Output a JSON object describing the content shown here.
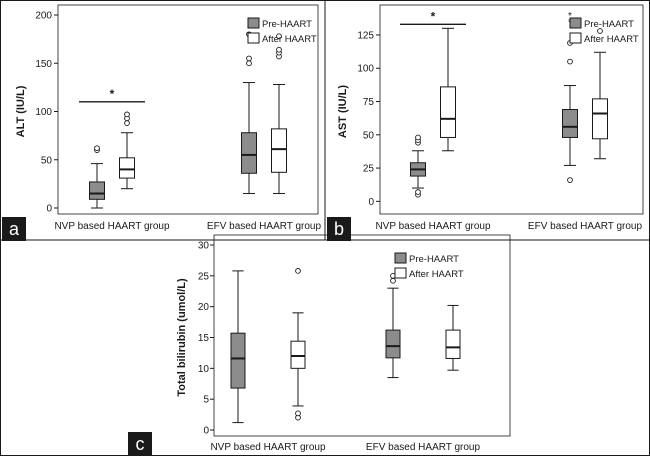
{
  "panel_labels": {
    "a": "a",
    "b": "b",
    "c": "c"
  },
  "colors": {
    "pre": "#8c8c8c",
    "post": "#ffffff",
    "stroke": "#1a1a1a"
  },
  "chart_data": [
    {
      "type": "boxplot",
      "panel": "a",
      "ylabel": "ALT  (IU/L)",
      "xlabel": "",
      "ylim": [
        0,
        200
      ],
      "yticks": [
        0,
        50,
        100,
        150,
        200
      ],
      "categories": [
        "NVP based HAART group",
        "EFV based HAART group"
      ],
      "legend": {
        "position": "top-right"
      },
      "series": [
        {
          "name": "Pre-HAART",
          "fill": "#8c8c8c",
          "boxes": [
            {
              "min": 0,
              "q1": 9,
              "median": 15,
              "q3": 27,
              "max": 46,
              "outliers": [
                60,
                62
              ],
              "extremes": []
            },
            {
              "min": 15,
              "q1": 36,
              "median": 55,
              "q3": 78,
              "max": 130,
              "outliers": [
                150,
                155,
                180
              ],
              "extremes": []
            }
          ]
        },
        {
          "name": "After HAART",
          "fill": "#ffffff",
          "boxes": [
            {
              "min": 20,
              "q1": 31,
              "median": 40,
              "q3": 52,
              "max": 78,
              "outliers": [
                88,
                93,
                97
              ],
              "extremes": []
            },
            {
              "min": 15,
              "q1": 37,
              "median": 61,
              "q3": 82,
              "max": 128,
              "outliers": [
                157,
                161,
                164,
                178
              ],
              "extremes": []
            }
          ]
        }
      ],
      "significance": [
        {
          "category": 0,
          "y": 110,
          "label": "*"
        }
      ]
    },
    {
      "type": "boxplot",
      "panel": "b",
      "ylabel": "AST  (IU/L)",
      "xlabel": "",
      "ylim": [
        -5,
        140
      ],
      "yticks": [
        0,
        25,
        50,
        75,
        100,
        125
      ],
      "categories": [
        "NVP based HAART group",
        "EFV based HAART group"
      ],
      "legend": {
        "position": "top-right"
      },
      "series": [
        {
          "name": "Pre-HAART",
          "fill": "#8c8c8c",
          "boxes": [
            {
              "min": 10,
              "q1": 19,
              "median": 24,
              "q3": 29,
              "max": 38,
              "outliers": [
                5,
                7,
                44,
                46,
                48
              ],
              "extremes": []
            },
            {
              "min": 27,
              "q1": 48,
              "median": 56,
              "q3": 69,
              "max": 87,
              "outliers": [
                16,
                105,
                119
              ],
              "extremes": [
                135,
                140
              ]
            }
          ]
        },
        {
          "name": "After HAART",
          "fill": "#ffffff",
          "boxes": [
            {
              "min": 38,
              "q1": 48,
              "median": 62,
              "q3": 86,
              "max": 130,
              "outliers": [],
              "extremes": []
            },
            {
              "min": 32,
              "q1": 47,
              "median": 66,
              "q3": 77,
              "max": 112,
              "outliers": [
                128
              ],
              "extremes": []
            }
          ]
        }
      ],
      "significance": [
        {
          "category": 0,
          "y": 133,
          "label": "*"
        }
      ]
    },
    {
      "type": "boxplot",
      "panel": "c",
      "ylabel": "Total bilirubin (umol/L)",
      "xlabel": "",
      "ylim": [
        0,
        30
      ],
      "yticks": [
        0,
        5,
        10,
        15,
        20,
        25,
        30
      ],
      "categories": [
        "NVP based HAART group",
        "EFV based HAART group"
      ],
      "legend": {
        "position": "top-right"
      },
      "series": [
        {
          "name": "Pre-HAART",
          "fill": "#8c8c8c",
          "boxes": [
            {
              "min": 1.2,
              "q1": 6.8,
              "median": 11.6,
              "q3": 15.7,
              "max": 25.8,
              "outliers": [],
              "extremes": []
            },
            {
              "min": 8.5,
              "q1": 11.7,
              "median": 13.6,
              "q3": 16.2,
              "max": 23.0,
              "outliers": [
                24.2,
                25.0
              ],
              "extremes": []
            }
          ]
        },
        {
          "name": "After HAART",
          "fill": "#ffffff",
          "boxes": [
            {
              "min": 3.9,
              "q1": 10.0,
              "median": 12.0,
              "q3": 14.4,
              "max": 19.0,
              "outliers": [
                2.0,
                2.7,
                25.8
              ],
              "extremes": []
            },
            {
              "min": 9.7,
              "q1": 11.6,
              "median": 13.4,
              "q3": 16.2,
              "max": 20.2,
              "outliers": [],
              "extremes": []
            }
          ]
        }
      ],
      "significance": []
    }
  ]
}
